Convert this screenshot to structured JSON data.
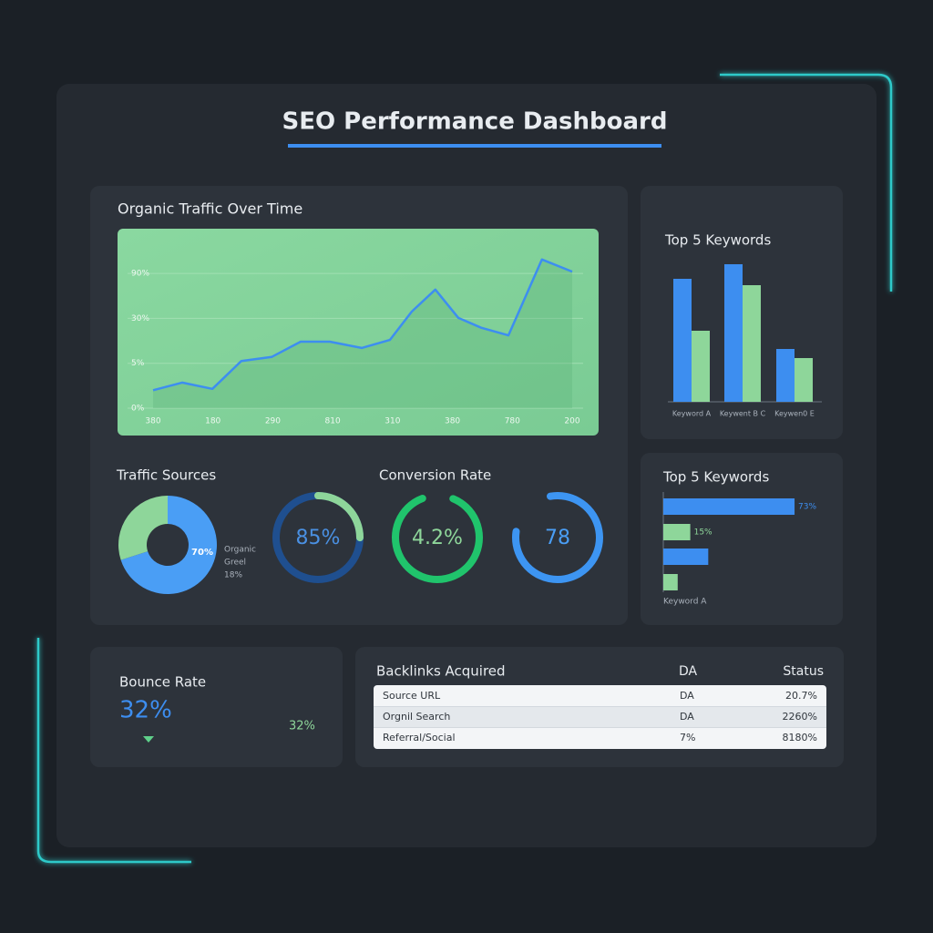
{
  "title": "SEO Performance Dashboard",
  "chart_data": [
    {
      "type": "line",
      "title": "Organic Traffic Over Time",
      "x": [
        0,
        0.97,
        1.98,
        2.95,
        3.96,
        4.93,
        5.9,
        6.97,
        7.91,
        8.64,
        9.43,
        10.2,
        10.96,
        11.87,
        12.99,
        14
      ],
      "values": [
        0.4,
        0.57,
        0.43,
        1.05,
        1.14,
        1.48,
        1.48,
        1.34,
        1.52,
        2.15,
        2.64,
        2.01,
        1.79,
        1.62,
        3.31,
        3.04
      ],
      "color": "#3d8ef0",
      "xlim": [
        0,
        14
      ],
      "xticks": [
        {
          "value": 0,
          "label": "380"
        },
        {
          "value": 2,
          "label": "180"
        },
        {
          "value": 4,
          "label": "290"
        },
        {
          "value": 6,
          "label": "810"
        },
        {
          "value": 8,
          "label": "310"
        },
        {
          "value": 10,
          "label": "380"
        },
        {
          "value": 12,
          "label": "780"
        },
        {
          "value": 14,
          "label": "200"
        }
      ],
      "ylim": [
        0,
        3.6
      ],
      "yticks": [
        {
          "value": 0,
          "label": "0%"
        },
        {
          "value": 1,
          "label": "5%"
        },
        {
          "value": 2,
          "label": "30%"
        },
        {
          "value": 3,
          "label": "90%"
        }
      ],
      "grid": true
    },
    {
      "type": "bar",
      "title": "Top 5 Keywords",
      "categories": [
        "Keyword A",
        "Keywent B C",
        "Keywen0 E"
      ],
      "series": [
        {
          "color": "#3d8ef0",
          "values": [
            135,
            151,
            58
          ]
        },
        {
          "color": "#8ed69a",
          "values": [
            78,
            128,
            48
          ]
        }
      ],
      "ylim": [
        0,
        160
      ]
    },
    {
      "type": "hbar",
      "title": "Top 5 Keywords",
      "categories": [
        null,
        null,
        null,
        "Keyword A"
      ],
      "values": [
        73,
        15,
        25,
        8
      ],
      "value_labels": [
        "73%",
        "15%",
        null,
        null
      ],
      "colors": [
        "#3d8ef0",
        "#8ed69a",
        "#3d8ef0",
        "#8ed69a"
      ],
      "xlim": [
        0,
        75
      ]
    },
    {
      "type": "pie",
      "title": "Traffic Sources",
      "values": [
        70,
        30
      ],
      "value_labels": [
        "70%",
        null
      ],
      "colors": [
        "#4a9ef5",
        "#8ed69a"
      ],
      "legend": [
        "Organic",
        "Greel",
        "18%"
      ]
    }
  ],
  "conversion_title": "Conversion Rate",
  "gauges": [
    {
      "label": "85%",
      "arc": 25,
      "color": "#8ed69a",
      "track": "#1f4f8f",
      "text_color": "#4a90e2"
    },
    {
      "label": "4.2%",
      "arc": 88,
      "color": "#20c46c",
      "text_color": "#8ed69a"
    },
    {
      "label": "78",
      "arc": 80,
      "color": "#3d95f2",
      "text_color": "#4a9ef5"
    }
  ],
  "bounce": {
    "title": "Bounce Rate",
    "value": "32%",
    "change": "32%"
  },
  "backlinks": {
    "title": "Backlinks Acquired",
    "headers": [
      "DA",
      "Status"
    ],
    "rows": [
      [
        "Source URL",
        "DA",
        "20.7%"
      ],
      [
        "Orgnil Search",
        "DA",
        "2260%"
      ],
      [
        "Referral/Social",
        "7%",
        "8180%"
      ]
    ]
  }
}
